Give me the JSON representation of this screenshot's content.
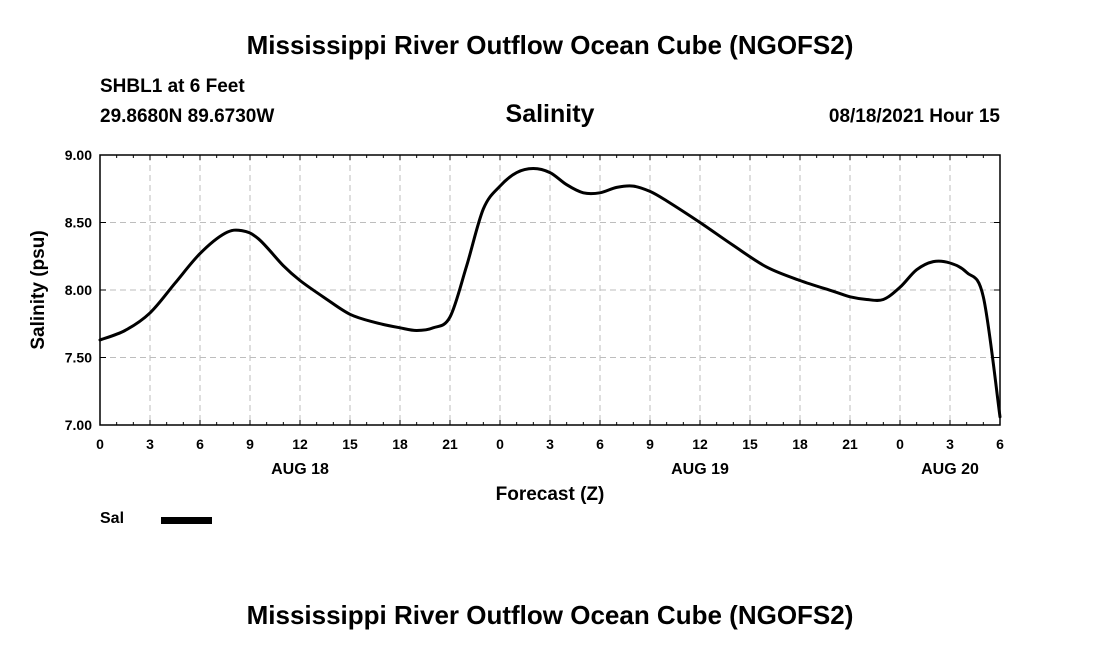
{
  "header": {
    "title": "Mississippi River Outflow Ocean Cube (NGOFS2)",
    "station": "SHBL1 at 6 Feet",
    "coords": "29.8680N  89.6730W",
    "parameter": "Salinity",
    "timestamp": "08/18/2021 Hour 15"
  },
  "footer": {
    "title": "Mississippi River Outflow Ocean Cube (NGOFS2)"
  },
  "legend": {
    "label": "Sal"
  },
  "chart_data": {
    "type": "line",
    "xlabel": "Forecast (Z)",
    "ylabel": "Salinity (psu)",
    "xlim": [
      0,
      54
    ],
    "ylim": [
      7.0,
      9.0
    ],
    "grid": true,
    "y_ticks": [
      7.0,
      7.5,
      8.0,
      8.5,
      9.0
    ],
    "y_tick_labels": [
      "7.00",
      "7.50",
      "8.00",
      "8.50",
      "9.00"
    ],
    "x_ticks": [
      0,
      3,
      6,
      9,
      12,
      15,
      18,
      21,
      24,
      27,
      30,
      33,
      36,
      39,
      42,
      45,
      48,
      51,
      54
    ],
    "x_tick_labels": [
      "0",
      "3",
      "6",
      "9",
      "12",
      "15",
      "18",
      "21",
      "0",
      "3",
      "6",
      "9",
      "12",
      "15",
      "18",
      "21",
      "0",
      "3",
      "6"
    ],
    "date_labels": [
      {
        "x": 12,
        "label": "AUG 18"
      },
      {
        "x": 36,
        "label": "AUG 19"
      },
      {
        "x": 51,
        "label": "AUG 20"
      }
    ],
    "series": [
      {
        "name": "Sal",
        "color": "#000000",
        "x": [
          0,
          1.5,
          3,
          4.5,
          6,
          7.5,
          8.5,
          9.5,
          11,
          12,
          13.5,
          15,
          16.5,
          18,
          19,
          20,
          21,
          22,
          23,
          24,
          25,
          26,
          27,
          28,
          29,
          30,
          31,
          32,
          33,
          34,
          36,
          38,
          40,
          42,
          44,
          45,
          46,
          47,
          48,
          49,
          50,
          51,
          52,
          53,
          54
        ],
        "y": [
          7.63,
          7.7,
          7.83,
          8.05,
          8.27,
          8.42,
          8.44,
          8.38,
          8.18,
          8.07,
          7.94,
          7.82,
          7.76,
          7.72,
          7.7,
          7.72,
          7.8,
          8.18,
          8.6,
          8.77,
          8.87,
          8.9,
          8.87,
          8.78,
          8.72,
          8.72,
          8.76,
          8.77,
          8.73,
          8.66,
          8.5,
          8.33,
          8.17,
          8.07,
          7.99,
          7.95,
          7.93,
          7.93,
          8.02,
          8.15,
          8.21,
          8.2,
          8.13,
          7.95,
          7.06
        ]
      }
    ]
  }
}
